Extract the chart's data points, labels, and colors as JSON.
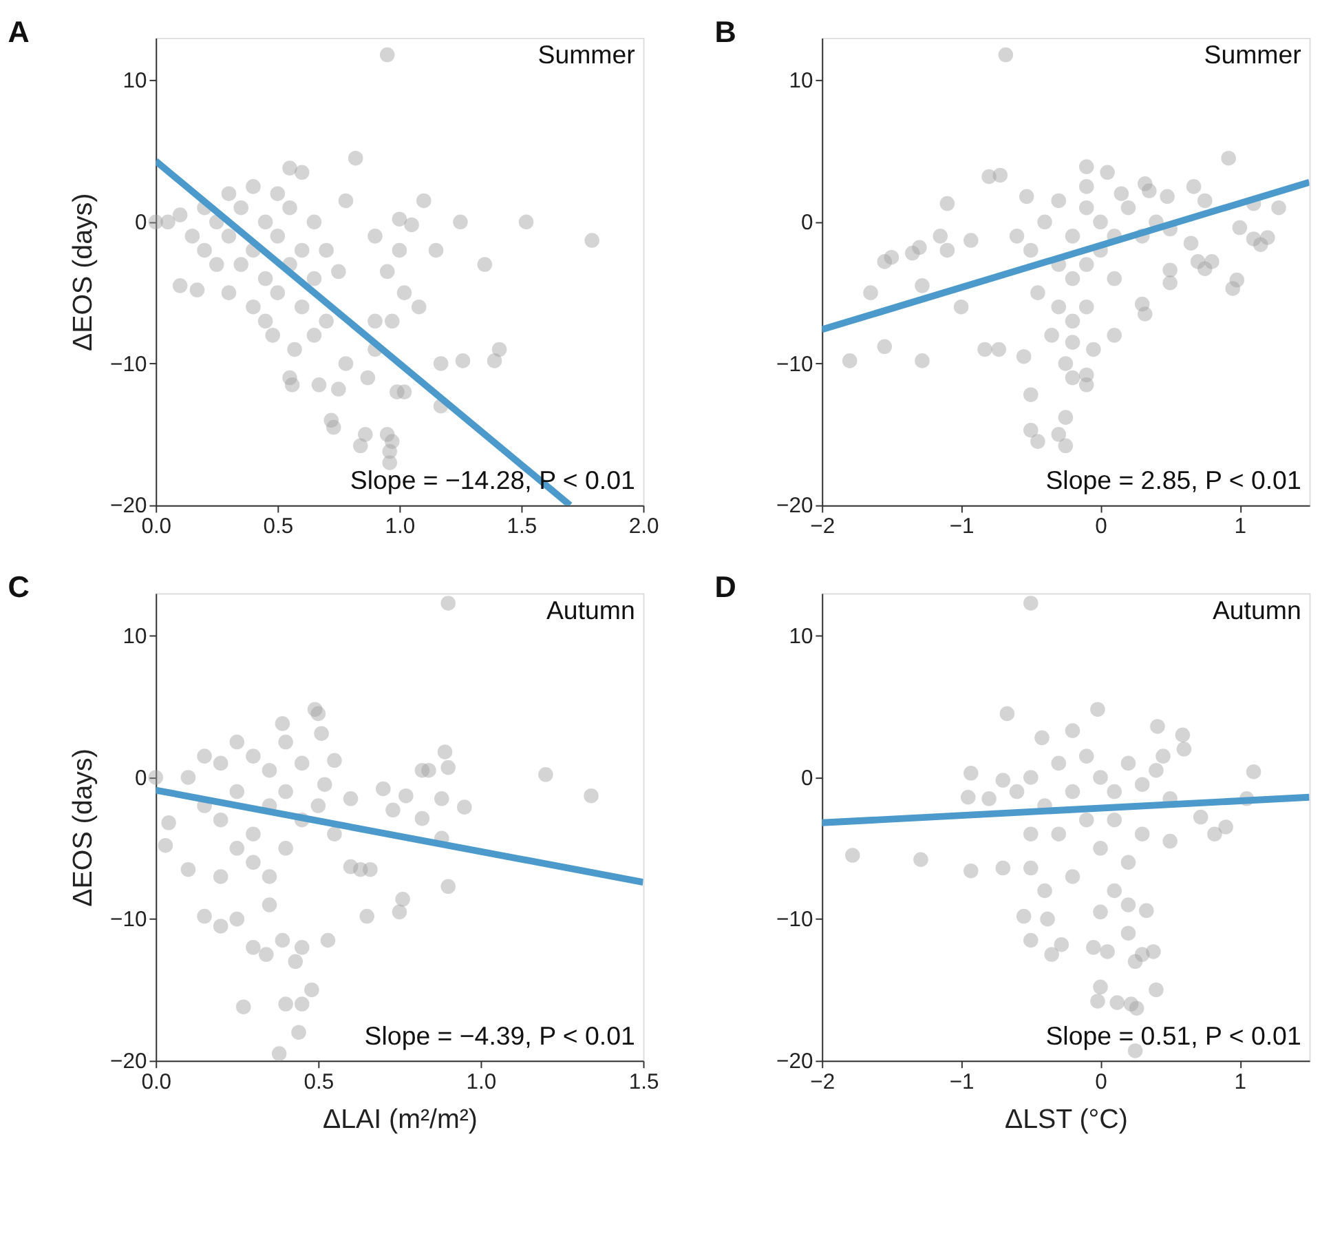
{
  "chart_data": [
    {
      "type": "scatter",
      "title": "A",
      "ylabel": "ΔEOS (days)",
      "xlim": [
        0,
        2
      ],
      "xticks": [
        {
          "value": 0,
          "label": "0.0"
        },
        0.5,
        {
          "value": 1,
          "label": "1.0"
        },
        1.5,
        {
          "value": 2,
          "label": "2.0"
        }
      ],
      "ylim": [
        -20,
        13
      ],
      "yticks": [
        -20,
        -10,
        0,
        10
      ],
      "annotations": [
        "Summer",
        "Slope = −14.28, P < 0.01"
      ],
      "grid": false,
      "series": [
        {
          "color": "#a0a0a0",
          "marker": "circle",
          "x": [
            0.95,
            0.82,
            0.78,
            1.1,
            1.0,
            1.05,
            1.25,
            1.52,
            1.79,
            1.15,
            1.35,
            0.9,
            1.0,
            0.95,
            1.02,
            1.08,
            0.9,
            0.97,
            1.17,
            1.26,
            1.41,
            1.39,
            0.99,
            1.02,
            1.17,
            0.72,
            0.73,
            0.86,
            0.84,
            0.95,
            0.97,
            0.96,
            0.96,
            0.55,
            0.56,
            0.67,
            0.75,
            0.9,
            0.78,
            0.87,
            0.57,
            0.48,
            0.1,
            0.17,
            0.0,
            0.05,
            0.1,
            0.15,
            0.2,
            0.2,
            0.25,
            0.3,
            0.3,
            0.35,
            0.35,
            0.4,
            0.4,
            0.45,
            0.45,
            0.5,
            0.5,
            0.5,
            0.55,
            0.55,
            0.6,
            0.6,
            0.65,
            0.65,
            0.7,
            0.7,
            0.6,
            0.55,
            0.3,
            0.4,
            0.75,
            0.25,
            0.45,
            0.65
          ],
          "values": [
            11.8,
            4.5,
            1.5,
            1.5,
            0.2,
            -0.2,
            0,
            0,
            -1.3,
            -2,
            -3,
            -1,
            -2,
            -3.5,
            -5,
            -6,
            -7,
            -7,
            -10,
            -9.8,
            -9,
            -9.8,
            -12,
            -12,
            -13,
            -14,
            -14.5,
            -15,
            -15.8,
            -15,
            -15.5,
            -16.2,
            -17,
            -11,
            -11.5,
            -11.5,
            -11.8,
            -9,
            -10,
            -11,
            -9,
            -8,
            -4.5,
            -4.8,
            0,
            0,
            0.5,
            -1,
            -2,
            1,
            0,
            -1,
            2,
            -3,
            1,
            -2,
            2.5,
            0,
            -4,
            -1,
            2,
            -5,
            -3,
            1,
            -2,
            -6,
            -4,
            0,
            -2,
            -7,
            3.5,
            3.8,
            -5,
            -6,
            -3.5,
            -3,
            -7,
            -8
          ]
        },
        {
          "type": "line",
          "marker": "none",
          "color": "#4c9acb",
          "x": [
            0,
            1.7
          ],
          "values": [
            4.3,
            -20
          ]
        }
      ]
    },
    {
      "type": "scatter",
      "title": "B",
      "xlim": [
        -2,
        1.5
      ],
      "xticks": [
        -2,
        -1,
        0,
        1
      ],
      "ylim": [
        -20,
        13
      ],
      "yticks": [
        -20,
        -10,
        0,
        10
      ],
      "annotations": [
        "Summer",
        "Slope = 2.85, P < 0.01"
      ],
      "grid": false,
      "series": [
        {
          "color": "#a0a0a0",
          "marker": "circle",
          "x": [
            -0.68,
            -0.8,
            -0.72,
            -1.1,
            -1.55,
            -1.5,
            -1.35,
            -1.3,
            -1.15,
            -1.1,
            -0.93,
            -1.65,
            -1.28,
            -1.0,
            -1.8,
            -1.55,
            -1.28,
            -0.83,
            -0.73,
            -0.55,
            -0.5,
            -0.5,
            -0.45,
            -0.3,
            -0.25,
            -0.25,
            -0.1,
            -0.1,
            -0.05,
            0.1,
            0.3,
            0.32,
            0.5,
            0.5,
            0.65,
            0.7,
            0.75,
            0.8,
            0.95,
            0.98,
            0.92,
            0.67,
            0.75,
            0.48,
            0.32,
            0.35,
            -0.1,
            0.05,
            1.1,
            1.28,
            1.0,
            1.1,
            1.15,
            1.2,
            -0.53,
            -0.4,
            -0.3,
            -0.2,
            -0.1,
            0,
            0.1,
            0.2,
            0.3,
            0.4,
            -0.3,
            -0.2,
            -0.1,
            0,
            -0.3,
            -0.2,
            -0.1,
            -0.35,
            -0.2,
            -0.5,
            -0.6,
            0.5,
            -0.45,
            0.1,
            -0.1,
            0.15,
            -0.25,
            -0.2
          ],
          "values": [
            11.8,
            3.2,
            3.3,
            1.3,
            -2.8,
            -2.5,
            -2.2,
            -1.8,
            -1,
            -2,
            -1.3,
            -5,
            -4.5,
            -6,
            -9.8,
            -8.8,
            -9.8,
            -9,
            -9,
            -9.5,
            -12.2,
            -14.7,
            -15.5,
            -15,
            -15.8,
            -13.8,
            -11.5,
            -10.8,
            -9,
            -8,
            -5.8,
            -6.5,
            -3.4,
            -4.3,
            -1.5,
            -2.8,
            -3.3,
            -2.8,
            -4.7,
            -4.1,
            4.5,
            2.5,
            1.5,
            1.8,
            2.7,
            2.2,
            3.9,
            3.5,
            1.3,
            1.0,
            -0.4,
            -1.2,
            -1.6,
            -1.1,
            1.8,
            0,
            1.5,
            -1,
            1,
            0,
            -1,
            1,
            -1,
            0,
            -3,
            -4,
            -3,
            -2,
            -6,
            -7,
            -6,
            -8,
            -8.5,
            -2,
            -1,
            -0.5,
            -5,
            -4,
            2.5,
            2,
            -10,
            -11
          ]
        },
        {
          "type": "line",
          "marker": "none",
          "color": "#4c9acb",
          "x": [
            -2,
            1.5
          ],
          "values": [
            -7.6,
            2.8
          ]
        }
      ]
    },
    {
      "type": "scatter",
      "title": "C",
      "ylabel": "ΔEOS (days)",
      "xlabel": "ΔLAI (m²/m²)",
      "xlim": [
        0,
        1.5
      ],
      "xticks": [
        {
          "value": 0,
          "label": "0.0"
        },
        0.5,
        {
          "value": 1,
          "label": "1.0"
        },
        1.5
      ],
      "ylim": [
        -20,
        13
      ],
      "yticks": [
        -20,
        -10,
        0,
        10
      ],
      "annotations": [
        "Autumn",
        "Slope = −4.39, P < 0.01"
      ],
      "grid": false,
      "series": [
        {
          "color": "#a0a0a0",
          "marker": "circle",
          "x": [
            0.9,
            0.49,
            0.5,
            0.39,
            0.51,
            0.89,
            0.9,
            0.82,
            0.84,
            1.2,
            1.34,
            0.95,
            0.88,
            0.82,
            0.88,
            0.9,
            0.76,
            0.75,
            0.65,
            0.63,
            0.45,
            0.43,
            0.39,
            0.25,
            0.2,
            0.15,
            0.3,
            0.34,
            0.27,
            0.45,
            0.48,
            0.4,
            0.38,
            0.44,
            0.53,
            0.6,
            0.66,
            0.0,
            0.03,
            0.04,
            0.1,
            0.55,
            0.7,
            0.77,
            0.73,
            0.52,
            0.1,
            0.15,
            0.2,
            0.2,
            0.25,
            0.3,
            0.3,
            0.35,
            0.35,
            0.4,
            0.4,
            0.45,
            0.45,
            0.5,
            0.3,
            0.35,
            0.35,
            0.25,
            0.2,
            0.55,
            0.15,
            0.4,
            0.25,
            0.6
          ],
          "values": [
            12.3,
            4.8,
            4.5,
            3.8,
            3.1,
            1.8,
            0.7,
            0.5,
            0.5,
            0.2,
            -1.3,
            -2.1,
            -1.5,
            -2.9,
            -4.3,
            -7.7,
            -8.6,
            -9.5,
            -9.8,
            -6.5,
            -12,
            -13,
            -11.5,
            -10,
            -10.5,
            -9.8,
            -12,
            -12.5,
            -16.2,
            -16,
            -15,
            -16,
            -19.5,
            -18,
            -11.5,
            -6.3,
            -6.5,
            0,
            -4.8,
            -3.2,
            -6.5,
            1.2,
            -0.8,
            -1.3,
            -2.3,
            -0.5,
            0,
            -2,
            1,
            -3,
            -1,
            1.5,
            -4,
            -2,
            0.5,
            -1,
            -5,
            -3,
            1,
            -2,
            -6,
            -7,
            -9,
            -5,
            -7,
            -4,
            1.5,
            2.5,
            2.5,
            -1.5
          ]
        },
        {
          "type": "line",
          "marker": "none",
          "color": "#4c9acb",
          "x": [
            0,
            1.5
          ],
          "values": [
            -0.9,
            -7.4
          ]
        }
      ]
    },
    {
      "type": "scatter",
      "title": "D",
      "xlabel": "ΔLST (°C)",
      "xlim": [
        -2,
        1.5
      ],
      "xticks": [
        -2,
        -1,
        0,
        1
      ],
      "ylim": [
        -20,
        13
      ],
      "yticks": [
        -20,
        -10,
        0,
        10
      ],
      "annotations": [
        "Autumn",
        "Slope = 0.51, P < 0.01"
      ],
      "grid": false,
      "series": [
        {
          "color": "#a0a0a0",
          "marker": "circle",
          "x": [
            -0.5,
            -0.67,
            -0.02,
            0.41,
            0.59,
            -0.42,
            -0.2,
            0.6,
            1.1,
            -0.93,
            -0.7,
            -0.95,
            -0.8,
            1.05,
            0.72,
            0.9,
            0.82,
            -1.78,
            -1.29,
            -0.93,
            -0.7,
            -0.5,
            -0.55,
            -0.38,
            -0.5,
            -0.35,
            -0.28,
            -0.05,
            0.05,
            0.25,
            0.3,
            0.38,
            0.4,
            0.0,
            -0.02,
            0.12,
            0.22,
            0.26,
            0.25,
            0.2,
            0.33,
            0.5,
            -0.6,
            -0.5,
            -0.4,
            -0.3,
            -0.2,
            -0.1,
            0,
            0.1,
            0.2,
            0.3,
            0.4,
            0.5,
            -0.3,
            -0.1,
            0,
            0.1,
            0.2,
            0.1,
            -0.2,
            0.2,
            -0.4,
            0,
            -0.5,
            0.3,
            0.45
          ],
          "values": [
            12.3,
            4.5,
            4.8,
            3.6,
            3,
            2.8,
            3.3,
            2,
            0.4,
            0.3,
            -0.2,
            -1.4,
            -1.5,
            -1.5,
            -2.8,
            -3.5,
            -4,
            -5.5,
            -5.8,
            -6.6,
            -6.4,
            -6.4,
            -9.8,
            -10,
            -11.5,
            -12.5,
            -11.8,
            -12,
            -12.3,
            -13,
            -12.5,
            -12.3,
            -15,
            -14.8,
            -15.8,
            -15.9,
            -16,
            -16.3,
            -19.3,
            -11,
            -9.4,
            -4.5,
            -1,
            0,
            -2,
            1,
            -1,
            1.5,
            0,
            -1,
            1,
            -0.5,
            0.5,
            -1.5,
            -4,
            -3,
            -5,
            -3,
            -6,
            -8,
            -7,
            -9,
            -8,
            -9.5,
            -4,
            -4,
            1.5
          ]
        },
        {
          "type": "line",
          "marker": "none",
          "color": "#4c9acb",
          "x": [
            -2,
            1.5
          ],
          "values": [
            -3.2,
            -1.4
          ]
        }
      ]
    }
  ]
}
